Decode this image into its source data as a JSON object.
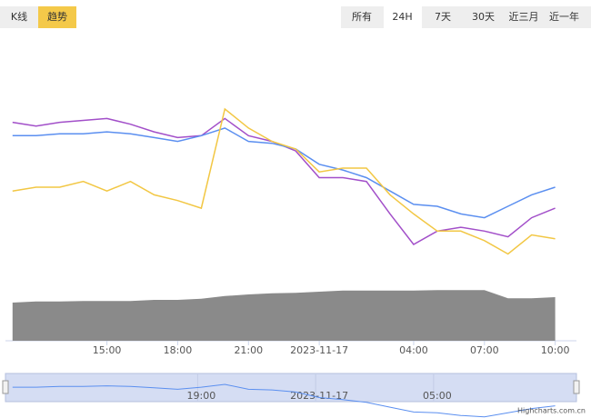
{
  "ui": {
    "view_tabs": [
      "K线",
      "趋势"
    ],
    "active_view": 1,
    "range_tabs": [
      "所有",
      "24H",
      "7天",
      "30天",
      "近三月",
      "近一年"
    ],
    "active_range": 1,
    "credit": "Highcharts.com.cn"
  },
  "chart_data": [
    {
      "type": "line",
      "x": [
        11,
        12,
        13,
        14,
        15,
        16,
        17,
        18,
        19,
        20,
        21,
        22,
        23,
        24,
        25,
        26,
        27,
        28,
        29,
        30,
        31,
        32,
        33,
        34
      ],
      "xlim": [
        10.7,
        34.9
      ],
      "xticks": [
        {
          "value": 15,
          "label": "15:00"
        },
        {
          "value": 18,
          "label": "18:00"
        },
        {
          "value": 21,
          "label": "21:00"
        },
        {
          "value": 24,
          "label": "2023-11-17"
        },
        {
          "value": 28,
          "label": "04:00"
        },
        {
          "value": 31,
          "label": "07:00"
        },
        {
          "value": 34,
          "label": "10:00"
        }
      ],
      "ylim": [
        0,
        100
      ],
      "series": [
        {
          "color": "#a24fc9",
          "values": [
            74,
            72,
            74,
            75,
            76,
            73,
            69,
            66,
            67,
            76,
            67,
            64,
            59,
            45,
            45,
            43,
            26,
            10,
            17,
            19,
            17,
            14,
            24,
            29
          ]
        },
        {
          "color": "#5b8ff0",
          "values": [
            67,
            67,
            68,
            68,
            69,
            68,
            66,
            64,
            67,
            71,
            64,
            63,
            60,
            52,
            49,
            45,
            38,
            31,
            30,
            26,
            24,
            30,
            36,
            40
          ]
        },
        {
          "color": "#f2c744",
          "values": [
            38,
            40,
            40,
            43,
            38,
            43,
            36,
            33,
            29,
            81,
            71,
            64,
            60,
            48,
            50,
            50,
            36,
            26,
            17,
            17,
            12,
            5,
            15,
            13
          ]
        }
      ]
    },
    {
      "type": "area",
      "x": [
        11,
        12,
        13,
        14,
        15,
        16,
        17,
        18,
        19,
        20,
        21,
        22,
        23,
        24,
        25,
        26,
        27,
        28,
        29,
        30,
        31,
        32,
        33,
        34
      ],
      "xlim": [
        10.7,
        34.9
      ],
      "ylim": [
        0,
        100
      ],
      "color": "#8a8a8a",
      "values": [
        70,
        72,
        72,
        73,
        73,
        73,
        75,
        75,
        77,
        82,
        85,
        87,
        88,
        90,
        92,
        92,
        92,
        92,
        93,
        93,
        93,
        78,
        78,
        80
      ]
    },
    {
      "type": "navigator",
      "xlim": [
        10.7,
        34.9
      ],
      "xticks": [
        {
          "value": 19,
          "label": "19:00"
        },
        {
          "value": 24,
          "label": "2023-11-17"
        },
        {
          "value": 29,
          "label": "05:00"
        }
      ]
    }
  ]
}
